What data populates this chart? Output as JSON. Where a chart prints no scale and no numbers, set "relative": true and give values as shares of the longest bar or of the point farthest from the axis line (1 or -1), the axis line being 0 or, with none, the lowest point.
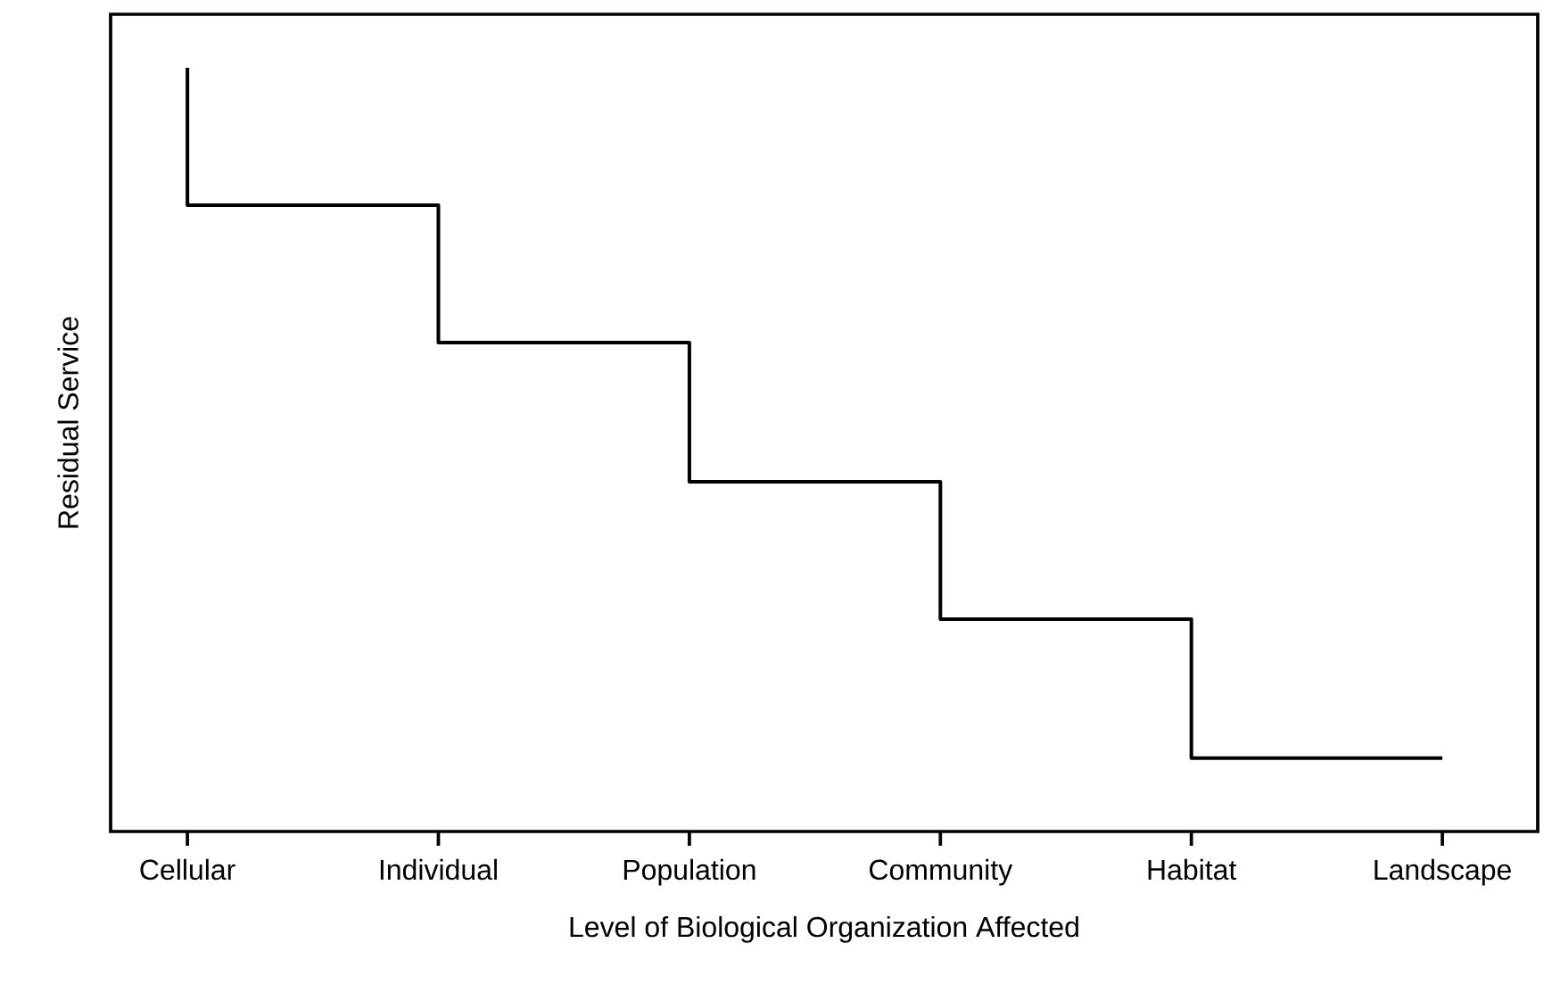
{
  "chart_data": {
    "type": "step",
    "relative": true,
    "xlabel": "Level of Biological Organization Affected",
    "ylabel": "Residual Service",
    "categories": [
      "Cellular",
      "Individual",
      "Population",
      "Community",
      "Habitat",
      "Landscape"
    ],
    "values": [
      1,
      0.82,
      0.64,
      0.458,
      0.278,
      0.096
    ],
    "color": "#000000",
    "tick_labels": "x"
  }
}
